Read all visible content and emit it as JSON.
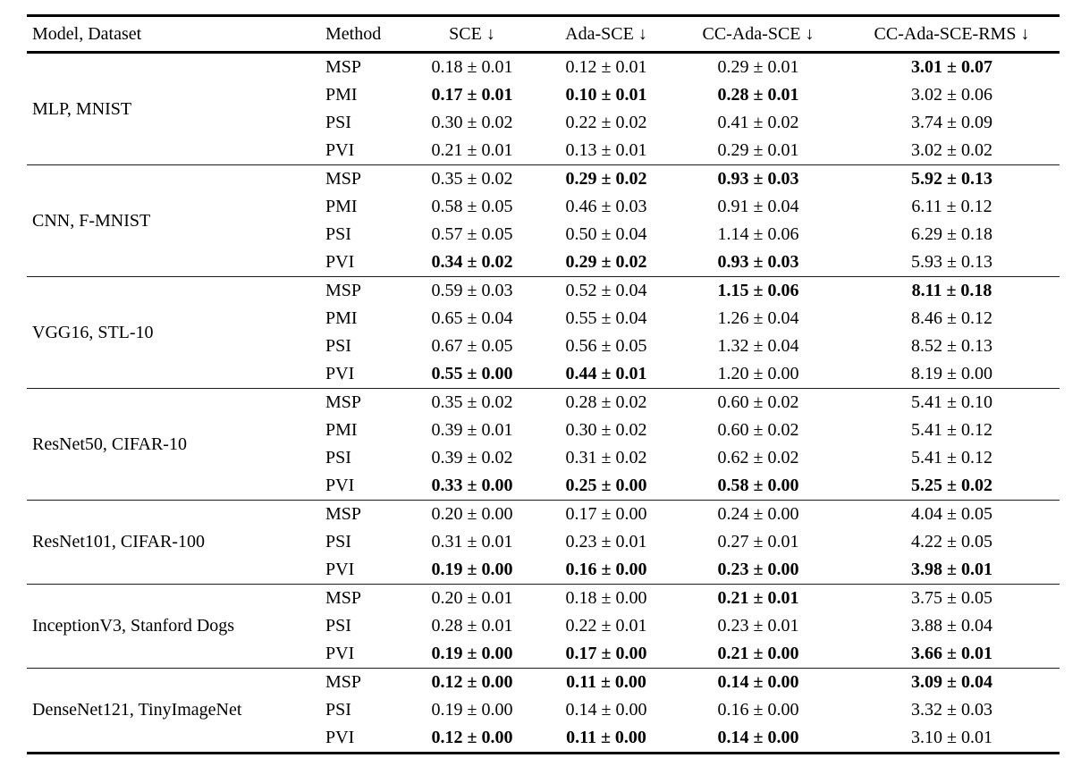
{
  "table": {
    "header": {
      "model_dataset": "Model, Dataset",
      "method": "Method",
      "sce": "SCE ↓",
      "ada_sce": "Ada-SCE ↓",
      "cc_ada_sce": "CC-Ada-SCE ↓",
      "cc_ada_sce_rms": "CC-Ada-SCE-RMS ↓"
    },
    "groups": [
      {
        "model_dataset": "MLP, MNIST",
        "rows": [
          {
            "method": "MSP",
            "sce": "0.18 ± 0.01",
            "ada_sce": "0.12 ± 0.01",
            "cc_ada_sce": "0.29 ± 0.01",
            "cc_ada_sce_rms": "3.01 ± 0.07",
            "bold": [
              "cc_ada_sce_rms"
            ]
          },
          {
            "method": "PMI",
            "sce": "0.17 ± 0.01",
            "ada_sce": "0.10 ± 0.01",
            "cc_ada_sce": "0.28 ± 0.01",
            "cc_ada_sce_rms": "3.02 ± 0.06",
            "bold": [
              "sce",
              "ada_sce",
              "cc_ada_sce"
            ]
          },
          {
            "method": "PSI",
            "sce": "0.30 ± 0.02",
            "ada_sce": "0.22 ± 0.02",
            "cc_ada_sce": "0.41 ± 0.02",
            "cc_ada_sce_rms": "3.74 ± 0.09",
            "bold": []
          },
          {
            "method": "PVI",
            "sce": "0.21 ± 0.01",
            "ada_sce": "0.13 ± 0.01",
            "cc_ada_sce": "0.29 ± 0.01",
            "cc_ada_sce_rms": "3.02 ± 0.02",
            "bold": []
          }
        ]
      },
      {
        "model_dataset": "CNN, F-MNIST",
        "rows": [
          {
            "method": "MSP",
            "sce": "0.35 ± 0.02",
            "ada_sce": "0.29 ± 0.02",
            "cc_ada_sce": "0.93 ± 0.03",
            "cc_ada_sce_rms": "5.92 ± 0.13",
            "bold": [
              "ada_sce",
              "cc_ada_sce",
              "cc_ada_sce_rms"
            ]
          },
          {
            "method": "PMI",
            "sce": "0.58 ± 0.05",
            "ada_sce": "0.46 ± 0.03",
            "cc_ada_sce": "0.91 ± 0.04",
            "cc_ada_sce_rms": "6.11 ± 0.12",
            "bold": []
          },
          {
            "method": "PSI",
            "sce": "0.57 ± 0.05",
            "ada_sce": "0.50 ± 0.04",
            "cc_ada_sce": "1.14 ± 0.06",
            "cc_ada_sce_rms": "6.29 ± 0.18",
            "bold": []
          },
          {
            "method": "PVI",
            "sce": "0.34 ± 0.02",
            "ada_sce": "0.29 ± 0.02",
            "cc_ada_sce": "0.93 ± 0.03",
            "cc_ada_sce_rms": "5.93 ± 0.13",
            "bold": [
              "sce",
              "ada_sce",
              "cc_ada_sce"
            ]
          }
        ]
      },
      {
        "model_dataset": "VGG16, STL-10",
        "rows": [
          {
            "method": "MSP",
            "sce": "0.59 ± 0.03",
            "ada_sce": "0.52 ± 0.04",
            "cc_ada_sce": "1.15 ± 0.06",
            "cc_ada_sce_rms": "8.11 ± 0.18",
            "bold": [
              "cc_ada_sce",
              "cc_ada_sce_rms"
            ]
          },
          {
            "method": "PMI",
            "sce": "0.65 ± 0.04",
            "ada_sce": "0.55 ± 0.04",
            "cc_ada_sce": "1.26 ± 0.04",
            "cc_ada_sce_rms": "8.46 ± 0.12",
            "bold": []
          },
          {
            "method": "PSI",
            "sce": "0.67 ± 0.05",
            "ada_sce": "0.56 ± 0.05",
            "cc_ada_sce": "1.32 ± 0.04",
            "cc_ada_sce_rms": "8.52 ± 0.13",
            "bold": []
          },
          {
            "method": "PVI",
            "sce": "0.55 ± 0.00",
            "ada_sce": "0.44 ± 0.01",
            "cc_ada_sce": "1.20 ± 0.00",
            "cc_ada_sce_rms": "8.19 ± 0.00",
            "bold": [
              "sce",
              "ada_sce"
            ]
          }
        ]
      },
      {
        "model_dataset": "ResNet50, CIFAR-10",
        "rows": [
          {
            "method": "MSP",
            "sce": "0.35 ± 0.02",
            "ada_sce": "0.28 ± 0.02",
            "cc_ada_sce": "0.60 ± 0.02",
            "cc_ada_sce_rms": "5.41 ± 0.10",
            "bold": []
          },
          {
            "method": "PMI",
            "sce": "0.39 ± 0.01",
            "ada_sce": "0.30 ± 0.02",
            "cc_ada_sce": "0.60 ± 0.02",
            "cc_ada_sce_rms": "5.41 ± 0.12",
            "bold": []
          },
          {
            "method": "PSI",
            "sce": "0.39 ± 0.02",
            "ada_sce": "0.31 ± 0.02",
            "cc_ada_sce": "0.62 ± 0.02",
            "cc_ada_sce_rms": "5.41 ± 0.12",
            "bold": []
          },
          {
            "method": "PVI",
            "sce": "0.33 ± 0.00",
            "ada_sce": "0.25 ± 0.00",
            "cc_ada_sce": "0.58 ± 0.00",
            "cc_ada_sce_rms": "5.25 ± 0.02",
            "bold": [
              "sce",
              "ada_sce",
              "cc_ada_sce",
              "cc_ada_sce_rms"
            ]
          }
        ]
      },
      {
        "model_dataset": "ResNet101, CIFAR-100",
        "rows": [
          {
            "method": "MSP",
            "sce": "0.20 ± 0.00",
            "ada_sce": "0.17 ± 0.00",
            "cc_ada_sce": "0.24 ± 0.00",
            "cc_ada_sce_rms": "4.04 ± 0.05",
            "bold": []
          },
          {
            "method": "PSI",
            "sce": "0.31 ± 0.01",
            "ada_sce": "0.23 ± 0.01",
            "cc_ada_sce": "0.27 ± 0.01",
            "cc_ada_sce_rms": "4.22 ± 0.05",
            "bold": []
          },
          {
            "method": "PVI",
            "sce": "0.19 ± 0.00",
            "ada_sce": "0.16 ± 0.00",
            "cc_ada_sce": "0.23 ± 0.00",
            "cc_ada_sce_rms": "3.98 ± 0.01",
            "bold": [
              "sce",
              "ada_sce",
              "cc_ada_sce",
              "cc_ada_sce_rms"
            ]
          }
        ]
      },
      {
        "model_dataset": "InceptionV3, Stanford Dogs",
        "rows": [
          {
            "method": "MSP",
            "sce": "0.20 ± 0.01",
            "ada_sce": "0.18 ± 0.00",
            "cc_ada_sce": "0.21 ± 0.01",
            "cc_ada_sce_rms": "3.75 ± 0.05",
            "bold": [
              "cc_ada_sce"
            ]
          },
          {
            "method": "PSI",
            "sce": "0.28 ± 0.01",
            "ada_sce": "0.22 ± 0.01",
            "cc_ada_sce": "0.23 ± 0.01",
            "cc_ada_sce_rms": "3.88 ± 0.04",
            "bold": []
          },
          {
            "method": "PVI",
            "sce": "0.19 ± 0.00",
            "ada_sce": "0.17 ± 0.00",
            "cc_ada_sce": "0.21 ± 0.00",
            "cc_ada_sce_rms": "3.66 ± 0.01",
            "bold": [
              "sce",
              "ada_sce",
              "cc_ada_sce",
              "cc_ada_sce_rms"
            ]
          }
        ]
      },
      {
        "model_dataset": "DenseNet121, TinyImageNet",
        "rows": [
          {
            "method": "MSP",
            "sce": "0.12 ± 0.00",
            "ada_sce": "0.11 ± 0.00",
            "cc_ada_sce": "0.14 ± 0.00",
            "cc_ada_sce_rms": "3.09 ± 0.04",
            "bold": [
              "sce",
              "ada_sce",
              "cc_ada_sce",
              "cc_ada_sce_rms"
            ]
          },
          {
            "method": "PSI",
            "sce": "0.19 ± 0.00",
            "ada_sce": "0.14 ± 0.00",
            "cc_ada_sce": "0.16 ± 0.00",
            "cc_ada_sce_rms": "3.32 ± 0.03",
            "bold": []
          },
          {
            "method": "PVI",
            "sce": "0.12 ± 0.00",
            "ada_sce": "0.11 ± 0.00",
            "cc_ada_sce": "0.14 ± 0.00",
            "cc_ada_sce_rms": "3.10 ± 0.01",
            "bold": [
              "sce",
              "ada_sce",
              "cc_ada_sce"
            ]
          }
        ]
      }
    ]
  }
}
